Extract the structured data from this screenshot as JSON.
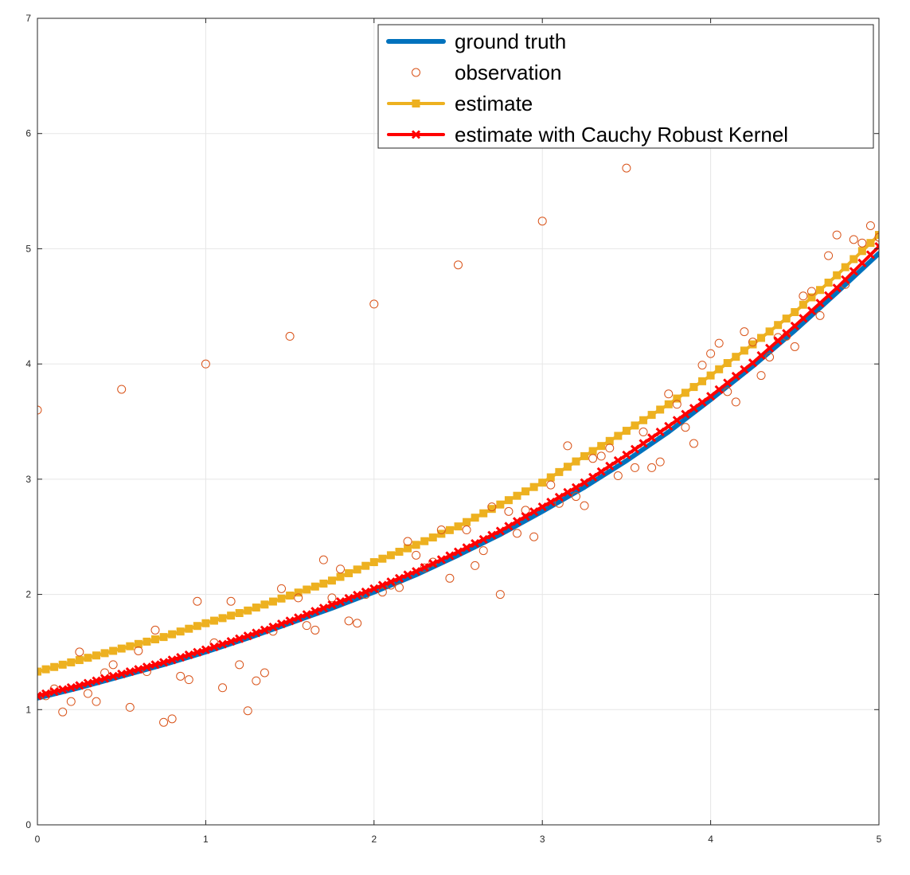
{
  "chart_data": {
    "type": "line",
    "title": "",
    "xlabel": "",
    "ylabel": "",
    "xlim": [
      0,
      5
    ],
    "ylim": [
      0,
      7
    ],
    "grid": true,
    "legend_position": "top-right",
    "x_ticks": [
      "0",
      "1",
      "2",
      "3",
      "4",
      "5"
    ],
    "y_ticks": [
      "0",
      "1",
      "2",
      "3",
      "4",
      "5",
      "6",
      "7"
    ],
    "series": [
      {
        "name": "ground truth",
        "style": "line",
        "color": "#0072BD",
        "x": [
          0,
          0.25,
          0.5,
          0.75,
          1,
          1.25,
          1.5,
          1.75,
          2,
          2.25,
          2.5,
          2.75,
          3,
          3.25,
          3.5,
          3.75,
          4,
          4.25,
          4.5,
          4.75,
          5
        ],
        "y": [
          1.1,
          1.19,
          1.29,
          1.39,
          1.5,
          1.62,
          1.75,
          1.88,
          2.02,
          2.17,
          2.34,
          2.52,
          2.72,
          2.93,
          3.16,
          3.41,
          3.69,
          3.98,
          4.29,
          4.62,
          4.96
        ]
      },
      {
        "name": "observation",
        "style": "markers",
        "marker": "circle",
        "color": "#D95319",
        "x": [
          0,
          0.05,
          0.1,
          0.15,
          0.2,
          0.25,
          0.3,
          0.35,
          0.4,
          0.45,
          0.5,
          0.55,
          0.6,
          0.65,
          0.7,
          0.75,
          0.8,
          0.85,
          0.9,
          0.95,
          1,
          1.05,
          1.1,
          1.15,
          1.2,
          1.25,
          1.3,
          1.35,
          1.4,
          1.45,
          1.5,
          1.55,
          1.6,
          1.65,
          1.7,
          1.75,
          1.8,
          1.85,
          1.9,
          1.95,
          2,
          2.05,
          2.1,
          2.15,
          2.2,
          2.25,
          2.3,
          2.35,
          2.4,
          2.45,
          2.5,
          2.55,
          2.6,
          2.65,
          2.7,
          2.75,
          2.8,
          2.85,
          2.9,
          2.95,
          3,
          3.05,
          3.1,
          3.15,
          3.2,
          3.25,
          3.3,
          3.35,
          3.4,
          3.45,
          3.5,
          3.55,
          3.6,
          3.65,
          3.7,
          3.75,
          3.8,
          3.85,
          3.9,
          3.95,
          4,
          4.05,
          4.1,
          4.15,
          4.2,
          4.25,
          4.3,
          4.35,
          4.4,
          4.45,
          4.5,
          4.55,
          4.6,
          4.65,
          4.7,
          4.75,
          4.8,
          4.85,
          4.9,
          4.95,
          5
        ],
        "y": [
          3.6,
          1.12,
          1.18,
          0.98,
          1.07,
          1.5,
          1.14,
          1.07,
          1.32,
          1.39,
          3.78,
          1.02,
          1.51,
          1.33,
          1.69,
          0.89,
          0.92,
          1.29,
          1.26,
          1.94,
          4.0,
          1.58,
          1.19,
          1.94,
          1.39,
          0.99,
          1.25,
          1.32,
          1.68,
          2.05,
          4.24,
          1.97,
          1.73,
          1.69,
          2.3,
          1.97,
          2.22,
          1.77,
          1.75,
          2.0,
          4.52,
          2.02,
          2.08,
          2.06,
          2.46,
          2.34,
          2.23,
          2.28,
          2.56,
          2.14,
          4.86,
          2.56,
          2.25,
          2.38,
          2.76,
          2.0,
          2.72,
          2.53,
          2.73,
          2.5,
          5.24,
          2.95,
          2.79,
          3.29,
          2.85,
          2.77,
          3.18,
          3.2,
          3.27,
          3.03,
          5.7,
          3.1,
          3.41,
          3.1,
          3.15,
          3.74,
          3.65,
          3.45,
          3.31,
          3.99,
          4.09,
          4.18,
          3.76,
          3.67,
          4.28,
          4.19,
          3.9,
          4.06,
          4.23,
          4.24,
          4.15,
          4.59,
          4.63,
          4.42,
          4.94,
          5.12,
          4.69,
          5.08,
          5.05,
          5.2,
          5.1
        ]
      },
      {
        "name": "estimate",
        "style": "line-markers",
        "marker": "square",
        "color": "#EDB120",
        "x": [
          0,
          0.25,
          0.5,
          0.75,
          1,
          1.25,
          1.5,
          1.75,
          2,
          2.25,
          2.5,
          2.75,
          3,
          3.25,
          3.5,
          3.75,
          4,
          4.25,
          4.5,
          4.75,
          5
        ],
        "y": [
          1.33,
          1.43,
          1.53,
          1.63,
          1.75,
          1.86,
          1.99,
          2.12,
          2.28,
          2.43,
          2.59,
          2.78,
          2.97,
          3.2,
          3.42,
          3.65,
          3.9,
          4.17,
          4.45,
          4.77,
          5.12
        ]
      },
      {
        "name": "estimate with Cauchy Robust Kernel",
        "style": "line-markers",
        "marker": "x",
        "color": "#FF0000",
        "x": [
          0,
          0.25,
          0.5,
          0.75,
          1,
          1.25,
          1.5,
          1.75,
          2,
          2.25,
          2.5,
          2.75,
          3,
          3.25,
          3.5,
          3.75,
          4,
          4.25,
          4.5,
          4.75,
          5
        ],
        "y": [
          1.12,
          1.21,
          1.31,
          1.41,
          1.52,
          1.64,
          1.77,
          1.91,
          2.05,
          2.2,
          2.37,
          2.55,
          2.76,
          2.97,
          3.21,
          3.46,
          3.72,
          4.01,
          4.33,
          4.66,
          5.02
        ]
      }
    ]
  }
}
